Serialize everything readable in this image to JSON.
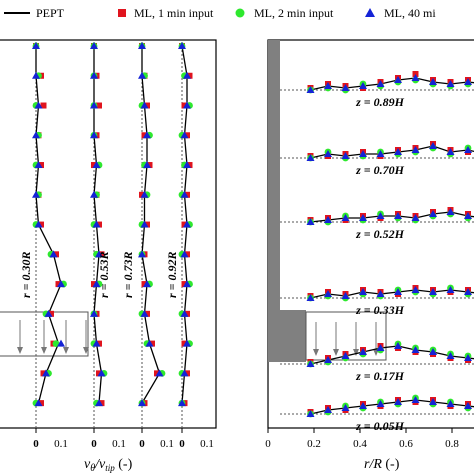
{
  "legend": {
    "items": [
      {
        "label": "PEPT",
        "marker": "line",
        "color": "#000000"
      },
      {
        "label": "ML, 1 min input",
        "marker": "square",
        "color": "#e0141e"
      },
      {
        "label": "ML, 2 min input",
        "marker": "circle",
        "color": "#2ee82e"
      },
      {
        "label": "ML, 40 mi",
        "marker": "triangle",
        "color": "#1423d6"
      }
    ]
  },
  "chart_data": [
    {
      "type": "line",
      "xlabel": "vθ/vtip (-)",
      "ylabel": "",
      "series_names": [
        "PEPT",
        "ML, 1 min input",
        "ML, 2 min input",
        "ML, 40 mi"
      ],
      "z_samples": [
        0.04,
        0.12,
        0.2,
        0.28,
        0.36,
        0.44,
        0.52,
        0.6,
        0.68,
        0.76,
        0.84,
        0.92,
        1.0
      ],
      "profiles": [
        {
          "label": "r = 0.30R",
          "tick_labels": [
            "0",
            "0.1"
          ],
          "pept": [
            0.01,
            0.04,
            0.09,
            0.05,
            0.1,
            0.07,
            0.01,
            0.0,
            0.01,
            0.0,
            0.01,
            0.0,
            0.0
          ],
          "ml_1min": [
            0.02,
            0.03,
            0.07,
            0.06,
            0.09,
            0.08,
            0.02,
            0.01,
            0.02,
            0.01,
            0.03,
            0.02,
            0.0
          ],
          "ml_2min": [
            0.0,
            0.05,
            0.08,
            0.04,
            0.11,
            0.06,
            0.0,
            0.01,
            0.0,
            0.01,
            0.0,
            0.01,
            0.0
          ],
          "ml_40min": [
            0.01,
            0.04,
            0.1,
            0.05,
            0.1,
            0.07,
            0.01,
            0.0,
            0.01,
            0.0,
            0.01,
            0.0,
            0.0
          ]
        },
        {
          "label": "r = 0.53R",
          "tick_labels": [
            "0",
            "0.1"
          ],
          "pept": [
            0.02,
            0.03,
            0.01,
            0.0,
            0.01,
            0.02,
            0.01,
            0.0,
            0.01,
            0.0,
            0.0,
            0.0,
            0.0
          ],
          "ml_1min": [
            0.03,
            0.02,
            0.02,
            0.01,
            0.0,
            0.03,
            0.02,
            0.01,
            0.0,
            0.01,
            0.02,
            0.01,
            0.0
          ],
          "ml_2min": [
            0.01,
            0.04,
            0.0,
            0.0,
            0.02,
            0.01,
            0.0,
            0.01,
            0.02,
            0.0,
            0.0,
            0.0,
            0.0
          ],
          "ml_40min": [
            0.02,
            0.03,
            0.01,
            0.0,
            0.01,
            0.02,
            0.01,
            0.0,
            0.01,
            0.0,
            0.0,
            0.0,
            0.0
          ]
        },
        {
          "label": "r = 0.73R",
          "tick_labels": [
            "0",
            "0.1"
          ],
          "pept": [
            0.0,
            0.07,
            0.03,
            0.01,
            0.02,
            0.0,
            0.01,
            0.01,
            0.02,
            0.02,
            0.01,
            0.0,
            0.0
          ],
          "ml_1min": [
            0.01,
            0.06,
            0.04,
            0.02,
            0.01,
            0.01,
            0.02,
            0.0,
            0.03,
            0.01,
            0.02,
            0.01,
            0.0
          ],
          "ml_2min": [
            0.0,
            0.08,
            0.02,
            0.0,
            0.03,
            0.0,
            0.0,
            0.02,
            0.01,
            0.03,
            0.0,
            0.01,
            0.0
          ],
          "ml_40min": [
            0.0,
            0.07,
            0.03,
            0.01,
            0.02,
            0.0,
            0.01,
            0.01,
            0.02,
            0.02,
            0.01,
            0.0,
            0.0
          ]
        },
        {
          "label": "r = 0.92R",
          "tick_labels": [
            "0",
            "0.1"
          ],
          "pept": [
            0.0,
            0.01,
            0.02,
            0.01,
            0.02,
            0.01,
            0.02,
            0.01,
            0.02,
            0.01,
            0.02,
            0.02,
            0.0
          ],
          "ml_1min": [
            0.01,
            0.02,
            0.01,
            0.02,
            0.01,
            0.02,
            0.01,
            0.02,
            0.03,
            0.02,
            0.01,
            0.03,
            0.0
          ],
          "ml_2min": [
            0.0,
            0.0,
            0.03,
            0.0,
            0.03,
            0.0,
            0.03,
            0.0,
            0.01,
            0.0,
            0.03,
            0.01,
            0.0
          ],
          "ml_40min": [
            0.0,
            0.01,
            0.02,
            0.01,
            0.02,
            0.01,
            0.02,
            0.01,
            0.02,
            0.01,
            0.02,
            0.02,
            0.0
          ]
        }
      ]
    },
    {
      "type": "line",
      "xlabel": "r/R (-)",
      "ylabel": "",
      "xlim": [
        0.0,
        0.9
      ],
      "xticks": [
        "0",
        "0.2",
        "0.4",
        "0.6",
        "0.8"
      ],
      "x": [
        0.13,
        0.2,
        0.27,
        0.34,
        0.41,
        0.48,
        0.55,
        0.62,
        0.69,
        0.76,
        0.83,
        0.9
      ],
      "levels": [
        {
          "label": "z = 0.89H",
          "pept": [
            0.0,
            0.2,
            0.1,
            0.2,
            0.3,
            0.5,
            0.6,
            0.4,
            0.3,
            0.4,
            0.3,
            0.2
          ],
          "ml_1min": [
            0.1,
            0.3,
            0.2,
            0.1,
            0.4,
            0.6,
            0.8,
            0.5,
            0.4,
            0.5,
            0.4,
            0.3
          ],
          "ml_2min": [
            0.0,
            0.1,
            0.0,
            0.3,
            0.2,
            0.4,
            0.5,
            0.3,
            0.2,
            0.3,
            0.4,
            0.1
          ],
          "ml_40min": [
            0.0,
            0.2,
            0.1,
            0.2,
            0.3,
            0.5,
            0.6,
            0.4,
            0.3,
            0.4,
            0.3,
            0.2
          ]
        },
        {
          "label": "z = 0.70H",
          "pept": [
            0.0,
            0.2,
            0.1,
            0.2,
            0.2,
            0.3,
            0.4,
            0.6,
            0.3,
            0.4,
            0.2,
            0.1
          ],
          "ml_1min": [
            0.1,
            0.1,
            0.2,
            0.3,
            0.1,
            0.4,
            0.5,
            0.7,
            0.4,
            0.3,
            0.3,
            0.2
          ],
          "ml_2min": [
            0.0,
            0.3,
            0.0,
            0.1,
            0.3,
            0.2,
            0.3,
            0.5,
            0.2,
            0.5,
            0.1,
            0.0
          ],
          "ml_40min": [
            0.0,
            0.2,
            0.1,
            0.2,
            0.2,
            0.3,
            0.4,
            0.6,
            0.3,
            0.4,
            0.2,
            0.1
          ]
        },
        {
          "label": "z = 0.52H",
          "pept": [
            0.0,
            0.1,
            0.2,
            0.2,
            0.3,
            0.3,
            0.2,
            0.4,
            0.5,
            0.3,
            0.2,
            0.1
          ],
          "ml_1min": [
            0.1,
            0.2,
            0.1,
            0.3,
            0.2,
            0.4,
            0.3,
            0.5,
            0.6,
            0.4,
            0.3,
            0.2
          ],
          "ml_2min": [
            0.0,
            0.0,
            0.3,
            0.1,
            0.4,
            0.2,
            0.1,
            0.3,
            0.4,
            0.2,
            0.1,
            0.0
          ],
          "ml_40min": [
            0.0,
            0.1,
            0.2,
            0.2,
            0.3,
            0.3,
            0.2,
            0.4,
            0.5,
            0.3,
            0.2,
            0.1
          ]
        },
        {
          "label": "z = 0.33H",
          "pept": [
            0.0,
            0.2,
            0.1,
            0.3,
            0.2,
            0.3,
            0.4,
            0.3,
            0.4,
            0.3,
            0.2,
            0.1
          ],
          "ml_1min": [
            0.1,
            0.3,
            0.2,
            0.4,
            0.3,
            0.2,
            0.5,
            0.4,
            0.3,
            0.4,
            0.3,
            0.2
          ],
          "ml_2min": [
            0.0,
            0.1,
            0.0,
            0.2,
            0.1,
            0.4,
            0.3,
            0.2,
            0.5,
            0.2,
            0.1,
            0.0
          ],
          "ml_40min": [
            0.0,
            0.2,
            0.1,
            0.3,
            0.2,
            0.3,
            0.4,
            0.3,
            0.4,
            0.3,
            0.2,
            0.1
          ]
        },
        {
          "label": "z = 0.17H",
          "pept": [
            0.0,
            0.2,
            0.4,
            0.6,
            0.8,
            0.9,
            0.7,
            0.6,
            0.4,
            0.3,
            0.2,
            0.1
          ],
          "ml_1min": [
            0.1,
            0.3,
            0.5,
            0.7,
            0.9,
            0.8,
            0.6,
            0.5,
            0.3,
            0.2,
            0.3,
            0.2
          ],
          "ml_2min": [
            0.0,
            0.1,
            0.3,
            0.5,
            0.7,
            1.0,
            0.8,
            0.7,
            0.5,
            0.4,
            0.1,
            0.0
          ],
          "ml_40min": [
            0.0,
            0.2,
            0.4,
            0.6,
            0.8,
            0.9,
            0.7,
            0.6,
            0.4,
            0.3,
            0.2,
            0.1
          ]
        },
        {
          "label": "z = 0.05H",
          "pept": [
            0.0,
            0.2,
            0.3,
            0.4,
            0.5,
            0.6,
            0.7,
            0.6,
            0.5,
            0.4,
            0.3,
            0.2
          ],
          "ml_1min": [
            0.1,
            0.3,
            0.2,
            0.5,
            0.4,
            0.7,
            0.6,
            0.7,
            0.4,
            0.5,
            0.2,
            0.3
          ],
          "ml_2min": [
            0.0,
            0.1,
            0.4,
            0.3,
            0.6,
            0.5,
            0.8,
            0.5,
            0.6,
            0.3,
            0.4,
            0.1
          ],
          "ml_40min": [
            0.0,
            0.2,
            0.3,
            0.4,
            0.5,
            0.6,
            0.7,
            0.6,
            0.5,
            0.4,
            0.3,
            0.2
          ]
        }
      ]
    }
  ]
}
